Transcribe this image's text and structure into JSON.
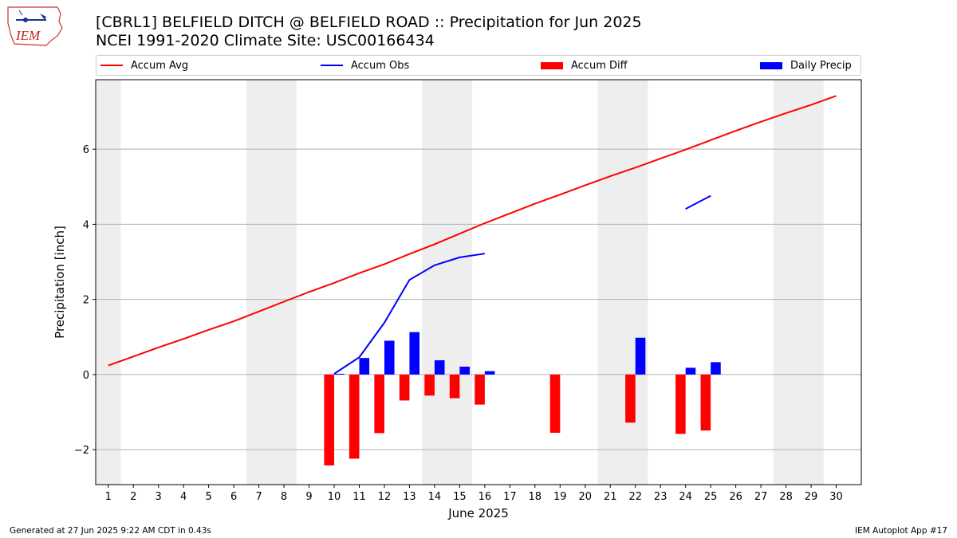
{
  "header": {
    "title_line1": "[CBRL1] BELFIELD DITCH @ BELFIELD ROAD :: Precipitation for Jun 2025",
    "title_line2": "NCEI 1991-2020 Climate Site: USC00166434",
    "logo_text": "IEM"
  },
  "legend": {
    "items": [
      {
        "label": "Accum Avg",
        "color": "#ff0000",
        "kind": "line"
      },
      {
        "label": "Accum Obs",
        "color": "#0000ff",
        "kind": "line"
      },
      {
        "label": "Accum Diff",
        "color": "#ff0000",
        "kind": "bar"
      },
      {
        "label": "Daily Precip",
        "color": "#0000ff",
        "kind": "bar"
      }
    ]
  },
  "footer": {
    "left": "Generated at 27 Jun 2025 9:22 AM CDT in 0.43s",
    "right": "IEM Autoplot App #17"
  },
  "colors": {
    "avg": "#ff0000",
    "obs": "#0000ff",
    "diff": "#ff0000",
    "daily": "#0000ff",
    "weekend_band": "#eeeeee",
    "grid": "#b0b0b0"
  },
  "chart_data": {
    "type": "bar",
    "title": "[CBRL1] BELFIELD DITCH @ BELFIELD ROAD :: Precipitation for Jun 2025",
    "subtitle": "NCEI 1991-2020 Climate Site: USC00166434",
    "xlabel": "June 2025",
    "ylabel": "Precipitation [inch]",
    "xlim": [
      0.5,
      31.0
    ],
    "ylim": [
      -2.93,
      7.85
    ],
    "yticks": [
      -2,
      0,
      2,
      4,
      6
    ],
    "ytick_labels": [
      "−2",
      "0",
      "2",
      "4",
      "6"
    ],
    "x_ticks": [
      1,
      2,
      3,
      4,
      5,
      6,
      7,
      8,
      9,
      10,
      11,
      12,
      13,
      14,
      15,
      16,
      17,
      18,
      19,
      20,
      21,
      22,
      23,
      24,
      25,
      26,
      27,
      28,
      29,
      30
    ],
    "grid": "horizontal",
    "legend_position": "top",
    "weekend_days": [
      1,
      7,
      8,
      14,
      15,
      21,
      22,
      28,
      29
    ],
    "series": [
      {
        "name": "Accum Avg",
        "type": "line",
        "x": [
          1,
          2,
          3,
          4,
          5,
          6,
          7,
          8,
          9,
          10,
          11,
          12,
          13,
          14,
          15,
          16,
          17,
          18,
          19,
          20,
          21,
          22,
          23,
          24,
          25,
          26,
          27,
          28,
          29,
          30
        ],
        "values": [
          0.24,
          0.48,
          0.72,
          0.95,
          1.19,
          1.42,
          1.68,
          1.94,
          2.2,
          2.44,
          2.7,
          2.94,
          3.21,
          3.47,
          3.75,
          4.03,
          4.29,
          4.55,
          4.79,
          5.04,
          5.28,
          5.51,
          5.75,
          5.99,
          6.24,
          6.49,
          6.73,
          6.96,
          7.18,
          7.42
        ]
      },
      {
        "name": "Accum Obs",
        "type": "line",
        "segments": [
          {
            "x": [
              10,
              11,
              12,
              13,
              14,
              15,
              16
            ],
            "values": [
              0.02,
              0.46,
              1.38,
              2.52,
              2.91,
              3.12,
              3.22
            ]
          },
          {
            "x": [
              24,
              25
            ],
            "values": [
              4.41,
              4.76
            ]
          }
        ]
      },
      {
        "name": "Accum Diff",
        "type": "bar",
        "x": [
          10,
          11,
          12,
          13,
          14,
          15,
          16,
          19,
          22,
          24,
          25
        ],
        "values": [
          -2.42,
          -2.24,
          -1.56,
          -0.69,
          -0.56,
          -0.63,
          -0.8,
          -1.55,
          -1.28,
          -1.58,
          -1.49
        ]
      },
      {
        "name": "Daily Precip",
        "type": "bar",
        "x": [
          10,
          11,
          12,
          13,
          14,
          15,
          16,
          22,
          24,
          25
        ],
        "values": [
          0.02,
          0.44,
          0.9,
          1.13,
          0.38,
          0.21,
          0.09,
          0.98,
          0.18,
          0.33
        ]
      }
    ]
  }
}
